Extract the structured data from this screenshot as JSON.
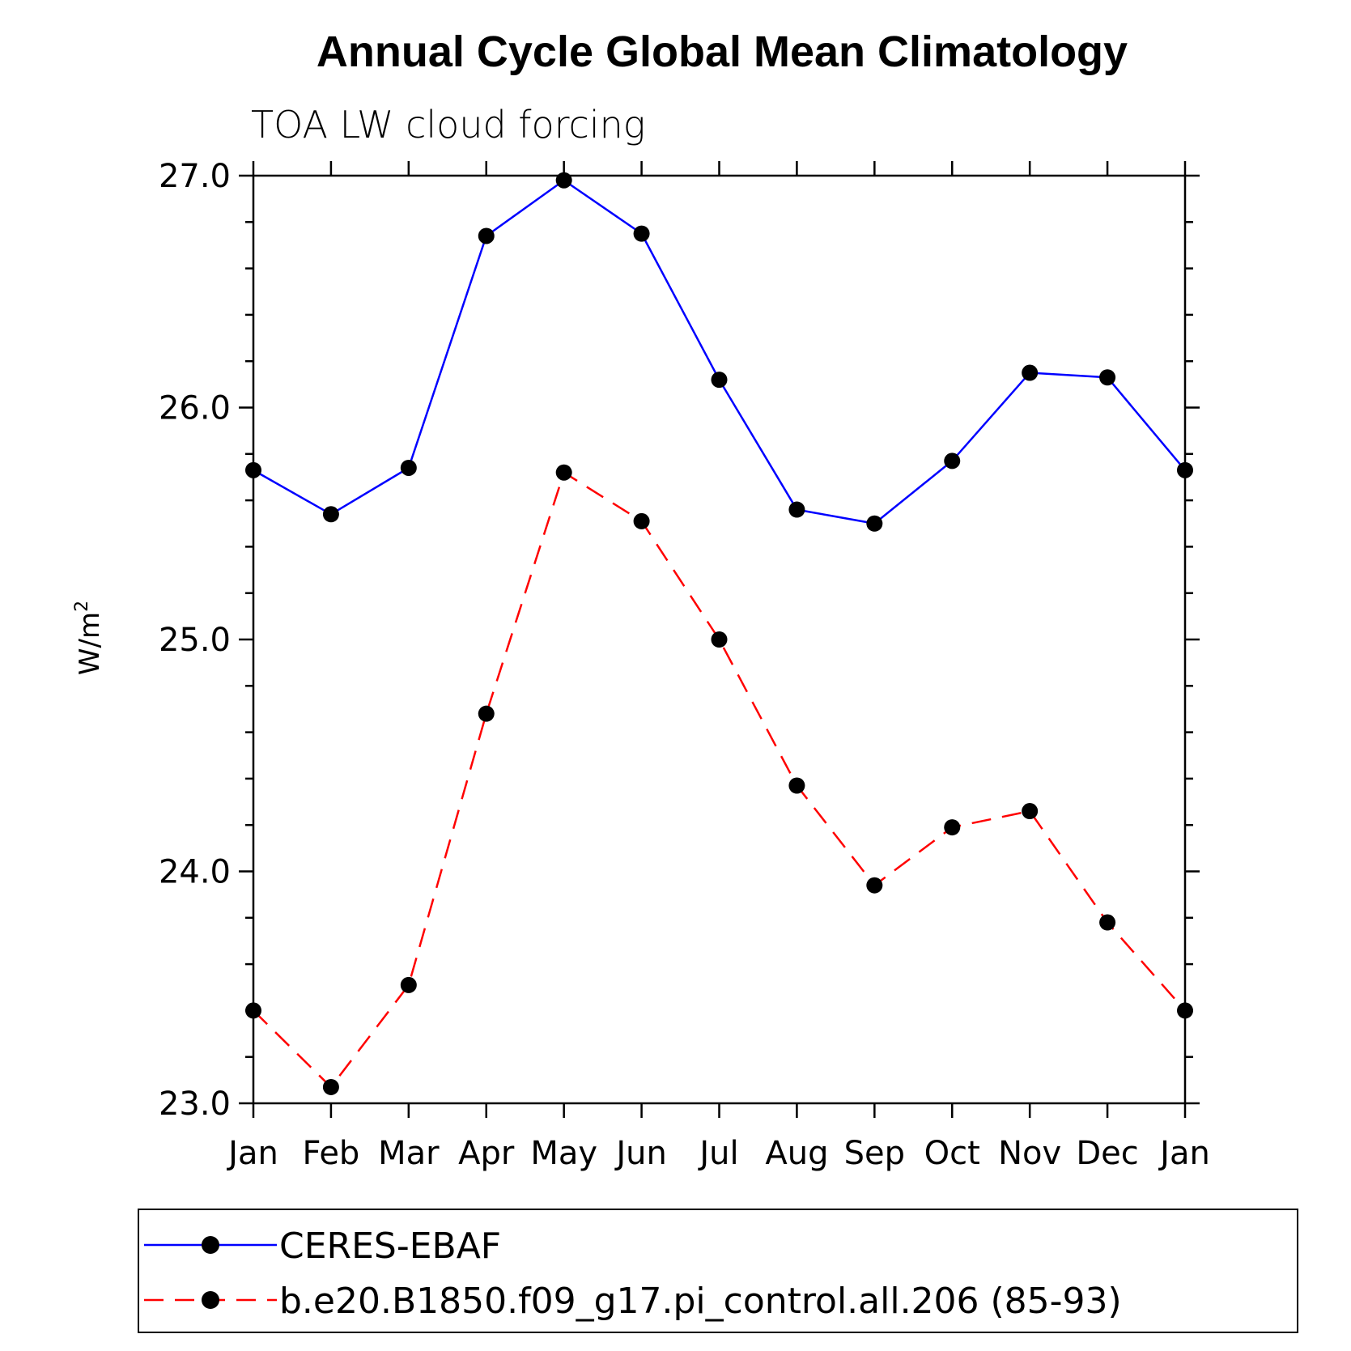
{
  "chart_data": {
    "type": "line",
    "title": "Annual Cycle Global Mean Climatology",
    "subtitle": "TOA LW cloud forcing",
    "ylabel": "W/m",
    "ylabel_superscript": "2",
    "xlabel": "",
    "categories": [
      "Jan",
      "Feb",
      "Mar",
      "Apr",
      "May",
      "Jun",
      "Jul",
      "Aug",
      "Sep",
      "Oct",
      "Nov",
      "Dec",
      "Jan"
    ],
    "ylim": [
      23.0,
      27.0
    ],
    "yticks": [
      "23.0",
      "24.0",
      "25.0",
      "26.0",
      "27.0"
    ],
    "yticks_values": [
      23.0,
      24.0,
      25.0,
      26.0,
      27.0
    ],
    "y_minor_step": 0.2,
    "series": [
      {
        "name": "CERES-EBAF",
        "color": "#0000ff",
        "dash": "solid",
        "values": [
          25.73,
          25.54,
          25.74,
          26.74,
          26.98,
          26.75,
          26.12,
          25.56,
          25.5,
          25.77,
          26.15,
          26.13,
          25.73
        ]
      },
      {
        "name": "b.e20.B1850.f09_g17.pi_control.all.206 (85-93)",
        "color": "#ff0000",
        "dash": "dashed",
        "values": [
          23.4,
          23.07,
          23.51,
          24.68,
          25.72,
          25.51,
          25.0,
          24.37,
          23.94,
          24.19,
          24.26,
          23.78,
          23.4
        ]
      }
    ],
    "marker_color": "#000000",
    "legend_position": "bottom"
  }
}
